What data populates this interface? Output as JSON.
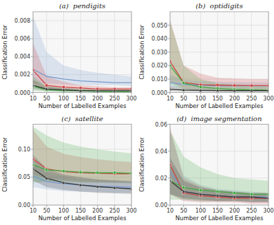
{
  "chart_data": [
    {
      "type": "line",
      "title": "(a)  pendigits",
      "xlabel": "Number of Labelled Examples",
      "ylabel": "Classification Error",
      "x": [
        10,
        50,
        100,
        150,
        200,
        250,
        300
      ],
      "xlim": [
        10,
        300
      ],
      "xticks": [
        10,
        50,
        100,
        150,
        200,
        250,
        300
      ],
      "ylim": [
        0.0,
        0.009
      ],
      "yticks": [
        {
          "value": 0.0,
          "label": "0.000"
        },
        0.002,
        0.004,
        0.006,
        0.008
      ],
      "grid": true,
      "series": [
        {
          "color": "#7799cc",
          "values": [
            0.0026,
            0.0018,
            0.0015,
            0.0013,
            0.0012,
            0.0011,
            0.0011
          ],
          "lower": [
            0.001,
            0.001,
            0.0009,
            0.0008,
            0.0008,
            0.0008,
            0.0007
          ],
          "upper": [
            0.0085,
            0.0045,
            0.003,
            0.0025,
            0.0022,
            0.002,
            0.0018
          ]
        },
        {
          "color": "#cc4444",
          "marker": "square",
          "values": [
            0.0025,
            0.0008,
            0.0006,
            0.0005,
            0.0004,
            0.0004,
            0.0004
          ],
          "lower": [
            0.0008,
            0.0003,
            0.0002,
            0.0002,
            0.0002,
            0.0001,
            0.0001
          ],
          "upper": [
            0.0055,
            0.0018,
            0.0012,
            0.0008,
            0.0007,
            0.0006,
            0.0006
          ]
        },
        {
          "color": "#44aa44",
          "marker": "square",
          "values": [
            0.0007,
            0.0003,
            0.0002,
            0.0002,
            0.0001,
            0.0001,
            0.0001
          ],
          "lower": [
            0.0002,
            0.0001,
            0.0001,
            0.0001,
            0.0001,
            0.0,
            0.0
          ],
          "upper": [
            0.0018,
            0.0007,
            0.0005,
            0.0004,
            0.0003,
            0.0003,
            0.0003
          ]
        },
        {
          "color": "#333333",
          "marker": "triangle",
          "values": [
            0.0008,
            0.0004,
            0.0003,
            0.0002,
            0.0002,
            0.0002,
            0.0002
          ],
          "lower": [
            0.0004,
            0.0002,
            0.0001,
            0.0001,
            0.0001,
            0.0001,
            0.0001
          ],
          "upper": [
            0.0014,
            0.0007,
            0.0005,
            0.0004,
            0.0003,
            0.0003,
            0.0003
          ]
        }
      ]
    },
    {
      "type": "line",
      "title": "(b)  optidigits",
      "xlabel": "Number of Labelled Examples",
      "ylabel": "Classification Error",
      "x": [
        10,
        50,
        100,
        150,
        200,
        250,
        300
      ],
      "xlim": [
        10,
        300
      ],
      "xticks": [
        10,
        50,
        100,
        150,
        200,
        250,
        300
      ],
      "ylim": [
        0.0,
        0.06
      ],
      "yticks": [
        {
          "value": 0.0,
          "label": "0.000"
        },
        {
          "value": 0.01,
          "label": "0.010"
        },
        {
          "value": 0.02,
          "label": "0.020"
        },
        {
          "value": 0.03,
          "label": "0.030"
        },
        {
          "value": 0.04,
          "label": "0.040"
        },
        {
          "value": 0.05,
          "label": "0.050"
        }
      ],
      "grid": true,
      "series": [
        {
          "color": "#7799cc",
          "values": [
            0.0075,
            0.006,
            0.0055,
            0.005,
            0.005,
            0.005,
            0.005
          ],
          "lower": [
            0.004,
            0.0035,
            0.003,
            0.0028,
            0.0028,
            0.0027,
            0.0027
          ],
          "upper": [
            0.013,
            0.0095,
            0.0085,
            0.008,
            0.0078,
            0.0077,
            0.0076
          ]
        },
        {
          "color": "#cc4444",
          "marker": "square",
          "values": [
            0.023,
            0.0075,
            0.0058,
            0.0055,
            0.0053,
            0.0052,
            0.0052
          ],
          "lower": [
            0.008,
            0.003,
            0.0025,
            0.0022,
            0.002,
            0.002,
            0.002
          ],
          "upper": [
            0.054,
            0.02,
            0.014,
            0.011,
            0.0105,
            0.01,
            0.01
          ]
        },
        {
          "color": "#44aa44",
          "marker": "square",
          "values": [
            0.02,
            0.007,
            0.004,
            0.003,
            0.0023,
            0.002,
            0.0018
          ],
          "lower": [
            0.006,
            0.002,
            0.0012,
            0.001,
            0.0009,
            0.0008,
            0.0007
          ],
          "upper": [
            0.053,
            0.02,
            0.01,
            0.007,
            0.006,
            0.0055,
            0.005
          ]
        },
        {
          "color": "#333333",
          "marker": "triangle",
          "values": [
            0.0025,
            0.0018,
            0.0016,
            0.0015,
            0.0014,
            0.0014,
            0.0014
          ],
          "lower": [
            0.001,
            0.0008,
            0.0007,
            0.0007,
            0.0006,
            0.0006,
            0.0006
          ],
          "upper": [
            0.0048,
            0.0032,
            0.0028,
            0.0026,
            0.0025,
            0.0025,
            0.0024
          ]
        }
      ]
    },
    {
      "type": "line",
      "title": "(c)  satellite",
      "xlabel": "Number of Labelled Examples",
      "ylabel": "Classification Error",
      "x": [
        10,
        50,
        100,
        150,
        200,
        250,
        300
      ],
      "xlim": [
        10,
        300
      ],
      "xticks": [
        10,
        50,
        100,
        150,
        200,
        250,
        300
      ],
      "ylim": [
        0.0,
        0.145
      ],
      "yticks": [
        {
          "value": 0.0,
          "label": "0.00"
        },
        0.05,
        {
          "value": 0.1,
          "label": "0.10"
        }
      ],
      "grid": true,
      "series": [
        {
          "color": "#7799cc",
          "values": [
            0.052,
            0.042,
            0.038,
            0.036,
            0.034,
            0.033,
            0.032
          ],
          "lower": [
            0.032,
            0.028,
            0.025,
            0.024,
            0.023,
            0.022,
            0.022
          ],
          "upper": [
            0.078,
            0.06,
            0.052,
            0.048,
            0.046,
            0.045,
            0.044
          ]
        },
        {
          "color": "#cc4444",
          "marker": "square",
          "values": [
            0.082,
            0.065,
            0.06,
            0.058,
            0.057,
            0.056,
            0.056
          ],
          "lower": [
            0.055,
            0.048,
            0.044,
            0.042,
            0.041,
            0.04,
            0.04
          ],
          "upper": [
            0.135,
            0.105,
            0.092,
            0.086,
            0.082,
            0.079,
            0.077
          ]
        },
        {
          "color": "#44aa44",
          "marker": "square",
          "values": [
            0.072,
            0.063,
            0.061,
            0.059,
            0.058,
            0.058,
            0.057
          ],
          "lower": [
            0.04,
            0.042,
            0.042,
            0.04,
            0.04,
            0.04,
            0.039
          ],
          "upper": [
            0.14,
            0.125,
            0.112,
            0.105,
            0.1,
            0.096,
            0.093
          ]
        },
        {
          "color": "#333333",
          "marker": "triangle",
          "values": [
            0.065,
            0.048,
            0.04,
            0.036,
            0.033,
            0.031,
            0.029
          ],
          "lower": [
            0.044,
            0.032,
            0.027,
            0.024,
            0.022,
            0.021,
            0.02
          ],
          "upper": [
            0.09,
            0.065,
            0.055,
            0.05,
            0.046,
            0.044,
            0.042
          ]
        }
      ]
    },
    {
      "type": "line",
      "title": "(d)  image segmentation",
      "xlabel": "Number of Labelled Examples",
      "ylabel": "Classification Error",
      "x": [
        10,
        50,
        100,
        150,
        200,
        250,
        300
      ],
      "xlim": [
        10,
        300
      ],
      "xticks": [
        10,
        50,
        100,
        150,
        200,
        250,
        300
      ],
      "ylim": [
        0.0,
        0.06
      ],
      "yticks": [
        {
          "value": 0.0,
          "label": "0.00"
        },
        0.02,
        0.04,
        {
          "value": 0.06,
          "label": "0.06"
        }
      ],
      "grid": true,
      "series": [
        {
          "color": "#7799cc",
          "values": [
            0.025,
            0.01,
            0.008,
            0.007,
            0.006,
            0.006,
            0.006
          ],
          "lower": [
            0.008,
            0.004,
            0.003,
            0.003,
            0.003,
            0.002,
            0.002
          ],
          "upper": [
            0.055,
            0.022,
            0.015,
            0.012,
            0.011,
            0.01,
            0.009
          ]
        },
        {
          "color": "#cc4444",
          "marker": "square",
          "values": [
            0.03,
            0.009,
            0.007,
            0.006,
            0.005,
            0.005,
            0.005
          ],
          "lower": [
            0.008,
            0.003,
            0.002,
            0.002,
            0.002,
            0.001,
            0.001
          ],
          "upper": [
            0.058,
            0.02,
            0.014,
            0.011,
            0.01,
            0.009,
            0.009
          ]
        },
        {
          "color": "#44aa44",
          "marker": "square",
          "values": [
            0.018,
            0.013,
            0.011,
            0.01,
            0.009,
            0.008,
            0.008
          ],
          "lower": [
            0.004,
            0.004,
            0.003,
            0.003,
            0.003,
            0.003,
            0.003
          ],
          "upper": [
            0.055,
            0.036,
            0.028,
            0.023,
            0.02,
            0.019,
            0.018
          ]
        },
        {
          "color": "#333333",
          "marker": "triangle",
          "values": [
            0.018,
            0.01,
            0.008,
            0.007,
            0.006,
            0.006,
            0.005
          ],
          "lower": [
            0.008,
            0.005,
            0.004,
            0.003,
            0.003,
            0.002,
            0.002
          ],
          "upper": [
            0.035,
            0.018,
            0.013,
            0.011,
            0.01,
            0.009,
            0.009
          ]
        }
      ]
    }
  ]
}
